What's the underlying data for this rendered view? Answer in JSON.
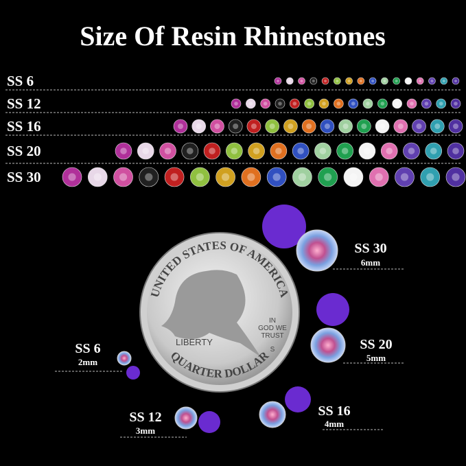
{
  "title": "Size Of Resin Rhinestones",
  "rows": [
    {
      "label": "SS 6"
    },
    {
      "label": "SS 12"
    },
    {
      "label": "SS 16"
    },
    {
      "label": "SS 20"
    },
    {
      "label": "SS 30"
    }
  ],
  "coin": {
    "top": "UNITED STATES OF AMERICA",
    "left": "LIBERTY",
    "motto": [
      "IN",
      "GOD WE",
      "TRUST"
    ],
    "mint": "S",
    "bottom": "QUARTER DOLLAR"
  },
  "sizes": [
    {
      "label": "SS 30",
      "mm": "6mm"
    },
    {
      "label": "SS 20",
      "mm": "5mm"
    },
    {
      "label": "SS 16",
      "mm": "4mm"
    },
    {
      "label": "SS 12",
      "mm": "3mm"
    },
    {
      "label": "SS 6",
      "mm": "2mm"
    }
  ]
}
